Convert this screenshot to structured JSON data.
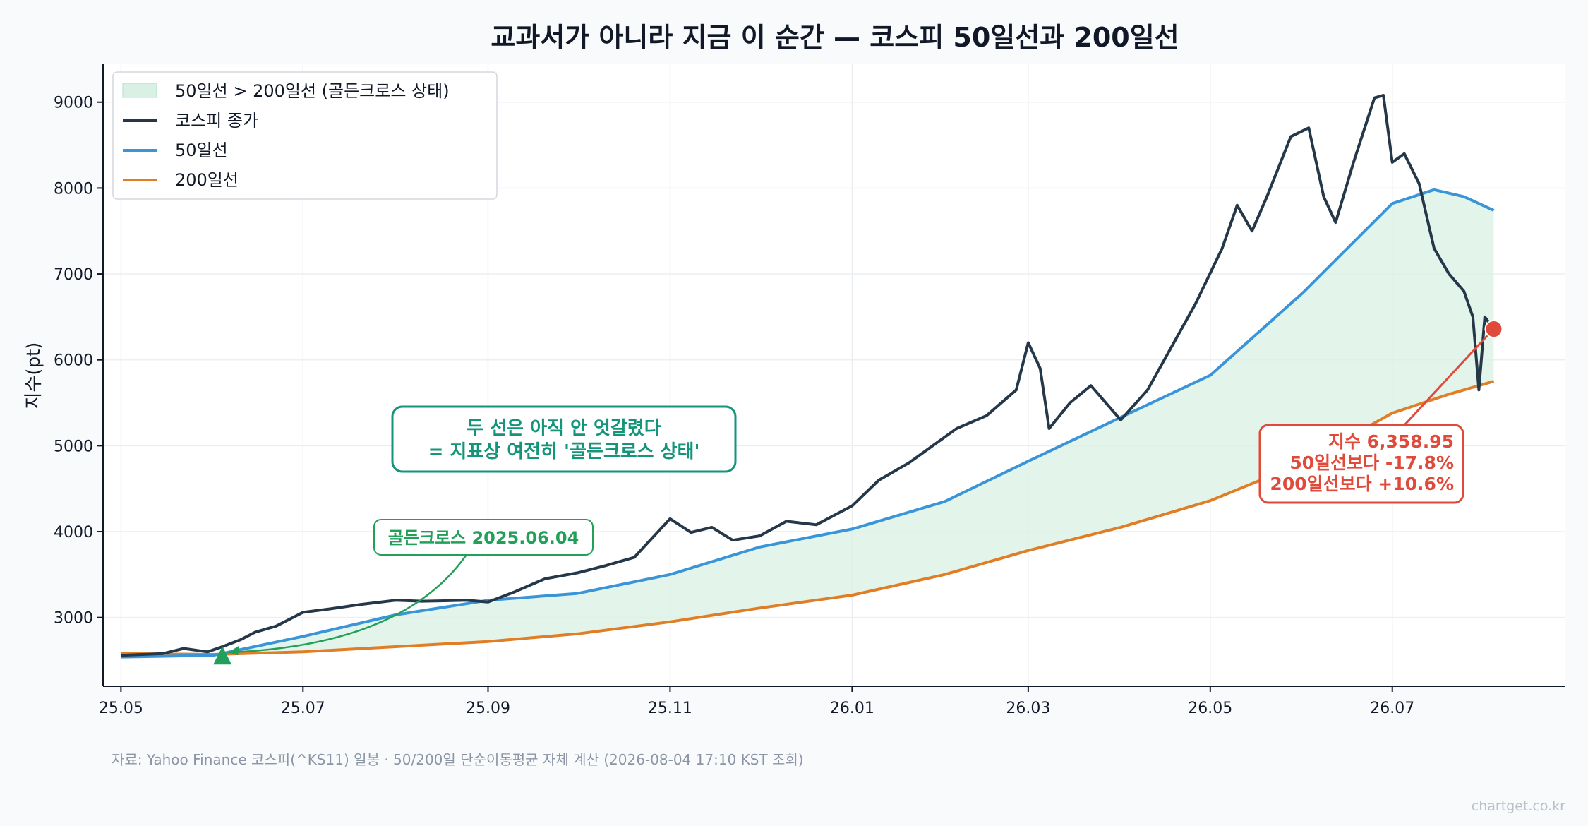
{
  "chart_data": {
    "type": "line",
    "title": "교과서가 아니라 지금 이 순간 — 코스피 50일선과 200일선",
    "ylabel": "지수(pt)",
    "xlabel": "",
    "ylim": [
      2200,
      9450
    ],
    "xlim": [
      "2025-04-25",
      "2026-08-28"
    ],
    "y_ticks": [
      3000,
      4000,
      5000,
      6000,
      7000,
      8000,
      9000
    ],
    "x_ticks": [
      {
        "date": "2025-05-01",
        "label": "25.05"
      },
      {
        "date": "2025-07-01",
        "label": "25.07"
      },
      {
        "date": "2025-09-01",
        "label": "25.09"
      },
      {
        "date": "2025-11-01",
        "label": "25.11"
      },
      {
        "date": "2026-01-01",
        "label": "26.01"
      },
      {
        "date": "2026-03-01",
        "label": "26.03"
      },
      {
        "date": "2026-05-01",
        "label": "26.05"
      },
      {
        "date": "2026-07-01",
        "label": "26.07"
      }
    ],
    "grid": true,
    "legend_position": "top-left",
    "legend": [
      {
        "key": "fill",
        "label": "50일선 > 200일선 (골든크로스 상태)",
        "color": "#d9f0e4"
      },
      {
        "key": "close",
        "label": "코스피 종가",
        "color": "#253849"
      },
      {
        "key": "ma50",
        "label": "50일선",
        "color": "#3a95d8"
      },
      {
        "key": "ma200",
        "label": "200일선",
        "color": "#e07d25"
      }
    ],
    "series": [
      {
        "name": "코스피 종가",
        "color": "#253849",
        "points": [
          [
            "2025-05-01",
            2560
          ],
          [
            "2025-05-15",
            2580
          ],
          [
            "2025-05-22",
            2640
          ],
          [
            "2025-05-30",
            2600
          ],
          [
            "2025-06-04",
            2660
          ],
          [
            "2025-06-10",
            2740
          ],
          [
            "2025-06-15",
            2830
          ],
          [
            "2025-06-22",
            2900
          ],
          [
            "2025-07-01",
            3060
          ],
          [
            "2025-07-10",
            3100
          ],
          [
            "2025-07-20",
            3150
          ],
          [
            "2025-08-01",
            3200
          ],
          [
            "2025-08-10",
            3190
          ],
          [
            "2025-08-25",
            3200
          ],
          [
            "2025-09-01",
            3180
          ],
          [
            "2025-09-10",
            3300
          ],
          [
            "2025-09-20",
            3450
          ],
          [
            "2025-10-01",
            3520
          ],
          [
            "2025-10-10",
            3600
          ],
          [
            "2025-10-20",
            3700
          ],
          [
            "2025-11-01",
            4150
          ],
          [
            "2025-11-08",
            3990
          ],
          [
            "2025-11-15",
            4050
          ],
          [
            "2025-11-22",
            3900
          ],
          [
            "2025-12-01",
            3950
          ],
          [
            "2025-12-10",
            4120
          ],
          [
            "2025-12-20",
            4080
          ],
          [
            "2026-01-01",
            4300
          ],
          [
            "2026-01-10",
            4600
          ],
          [
            "2026-01-20",
            4800
          ],
          [
            "2026-01-28",
            5000
          ],
          [
            "2026-02-05",
            5200
          ],
          [
            "2026-02-15",
            5350
          ],
          [
            "2026-02-25",
            5650
          ],
          [
            "2026-03-01",
            6200
          ],
          [
            "2026-03-05",
            5900
          ],
          [
            "2026-03-08",
            5200
          ],
          [
            "2026-03-15",
            5500
          ],
          [
            "2026-03-22",
            5700
          ],
          [
            "2026-04-01",
            5300
          ],
          [
            "2026-04-10",
            5650
          ],
          [
            "2026-04-18",
            6150
          ],
          [
            "2026-04-26",
            6650
          ],
          [
            "2026-05-05",
            7300
          ],
          [
            "2026-05-10",
            7800
          ],
          [
            "2026-05-15",
            7500
          ],
          [
            "2026-05-20",
            7900
          ],
          [
            "2026-05-28",
            8600
          ],
          [
            "2026-06-03",
            8700
          ],
          [
            "2026-06-08",
            7900
          ],
          [
            "2026-06-12",
            7600
          ],
          [
            "2026-06-18",
            8300
          ],
          [
            "2026-06-25",
            9050
          ],
          [
            "2026-06-28",
            9080
          ],
          [
            "2026-07-01",
            8300
          ],
          [
            "2026-07-05",
            8400
          ],
          [
            "2026-07-10",
            8050
          ],
          [
            "2026-07-15",
            7300
          ],
          [
            "2026-07-20",
            7000
          ],
          [
            "2026-07-25",
            6800
          ],
          [
            "2026-07-28",
            6500
          ],
          [
            "2026-07-30",
            5650
          ],
          [
            "2026-08-01",
            6500
          ],
          [
            "2026-08-04",
            6358.95
          ]
        ]
      },
      {
        "name": "50일선",
        "color": "#3a95d8",
        "points": [
          [
            "2025-05-01",
            2540
          ],
          [
            "2025-06-01",
            2560
          ],
          [
            "2025-07-01",
            2780
          ],
          [
            "2025-08-01",
            3030
          ],
          [
            "2025-09-01",
            3200
          ],
          [
            "2025-10-01",
            3280
          ],
          [
            "2025-11-01",
            3500
          ],
          [
            "2025-12-01",
            3820
          ],
          [
            "2026-01-01",
            4030
          ],
          [
            "2026-02-01",
            4350
          ],
          [
            "2026-03-01",
            4820
          ],
          [
            "2026-04-01",
            5330
          ],
          [
            "2026-05-01",
            5820
          ],
          [
            "2026-06-01",
            6780
          ],
          [
            "2026-07-01",
            7820
          ],
          [
            "2026-07-15",
            7980
          ],
          [
            "2026-07-25",
            7900
          ],
          [
            "2026-08-04",
            7740
          ]
        ]
      },
      {
        "name": "200일선",
        "color": "#e07d25",
        "points": [
          [
            "2025-05-01",
            2580
          ],
          [
            "2025-06-01",
            2570
          ],
          [
            "2025-07-01",
            2600
          ],
          [
            "2025-08-01",
            2660
          ],
          [
            "2025-09-01",
            2720
          ],
          [
            "2025-10-01",
            2810
          ],
          [
            "2025-11-01",
            2950
          ],
          [
            "2025-12-01",
            3110
          ],
          [
            "2026-01-01",
            3260
          ],
          [
            "2026-02-01",
            3500
          ],
          [
            "2026-03-01",
            3780
          ],
          [
            "2026-04-01",
            4050
          ],
          [
            "2026-05-01",
            4360
          ],
          [
            "2026-06-01",
            4800
          ],
          [
            "2026-07-01",
            5380
          ],
          [
            "2026-07-20",
            5600
          ],
          [
            "2026-08-04",
            5750
          ]
        ]
      }
    ],
    "annotations": [
      {
        "type": "marker",
        "date": "2025-06-04",
        "value": 2560,
        "label": "골든크로스 2025.06.04",
        "color": "#22a05a"
      },
      {
        "type": "note",
        "lines": [
          "두 선은 아직 안 엇갈렸다",
          "= 지표상 여전히 '골든크로스 상태'"
        ],
        "color": "#149478"
      },
      {
        "type": "current",
        "date": "2026-08-04",
        "value": 6358.95,
        "lines": [
          "지수 6,358.95",
          "50일선보다 -17.8%",
          "200일선보다 +10.6%"
        ],
        "color": "#e04a3a"
      }
    ]
  },
  "footer": {
    "source": "자료: Yahoo Finance 코스피(^KS11) 일봉 · 50/200일 단순이동평균 자체 계산 (2026-08-04 17:10 KST 조회)",
    "watermark": "chartget.co.kr"
  }
}
